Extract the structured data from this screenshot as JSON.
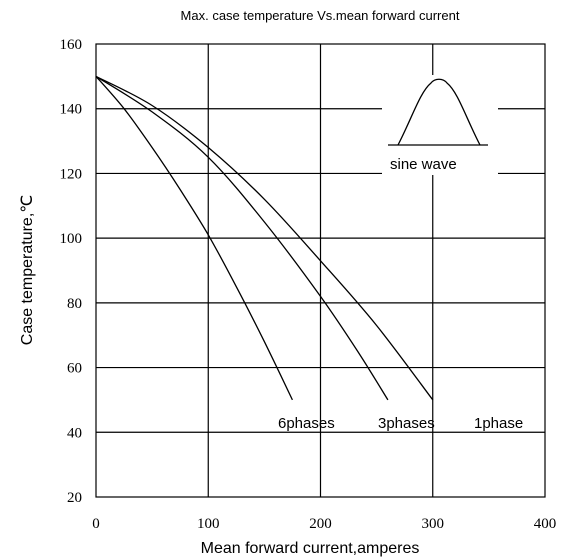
{
  "chart_data": {
    "type": "line",
    "title": "Max. case temperature  Vs.mean forward current",
    "xlabel": "Mean forward  current,amperes",
    "ylabel": "Case temperature,℃",
    "xlim": [
      0,
      400
    ],
    "ylim": [
      20,
      160
    ],
    "xticks": [
      0,
      100,
      200,
      300,
      400
    ],
    "yticks": [
      20,
      40,
      60,
      80,
      100,
      120,
      140,
      160
    ],
    "grid": true,
    "series": [
      {
        "name": "6phases",
        "x": [
          0,
          25,
          50,
          75,
          100,
          125,
          150,
          175
        ],
        "y": [
          150,
          140,
          128,
          115,
          101,
          85,
          68,
          50
        ]
      },
      {
        "name": "3phases",
        "x": [
          0,
          50,
          100,
          150,
          200,
          235,
          260
        ],
        "y": [
          150,
          139,
          125,
          105,
          82,
          64,
          50
        ]
      },
      {
        "name": "1phase",
        "x": [
          0,
          50,
          100,
          150,
          200,
          250,
          300
        ],
        "y": [
          150,
          141,
          128,
          112,
          93,
          73,
          50
        ]
      }
    ],
    "annotations": {
      "waveform_label": "sine wave"
    }
  }
}
